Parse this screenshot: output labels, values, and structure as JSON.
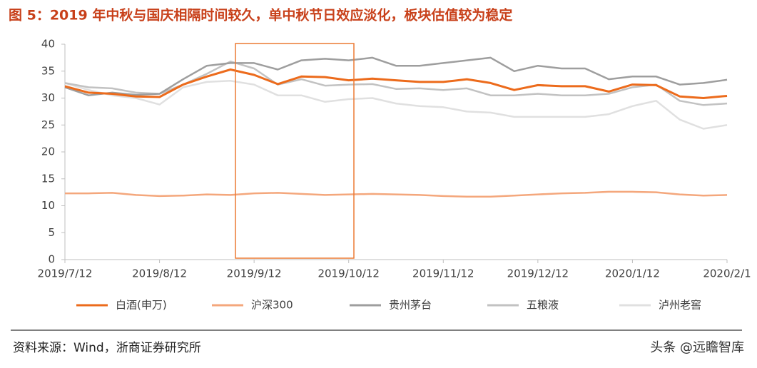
{
  "chart_data": {
    "type": "line",
    "title": "图 5：2019 年中秋与国庆相隔时间较久，单中秋节日效应淡化，板块估值较为稳定",
    "source": "资料来源：Wind，浙商证券研究所",
    "watermark": "头条 @远瞻智库",
    "categories": [
      "2019/7/12",
      null,
      null,
      null,
      "2019/8/12",
      null,
      null,
      null,
      "2019/9/12",
      null,
      null,
      null,
      "2019/10/12",
      null,
      null,
      null,
      "2019/11/12",
      null,
      null,
      null,
      "2019/12/12",
      null,
      null,
      null,
      "2020/1/12",
      null,
      null,
      null,
      "2020/2/1"
    ],
    "ylim": [
      0,
      40
    ],
    "yticks": [
      0,
      5,
      10,
      15,
      20,
      25,
      30,
      35,
      40
    ],
    "series": [
      {
        "name": "白酒(申万)",
        "color": "#ec6b1c",
        "values": [
          32.2,
          31,
          30.8,
          30.3,
          30.2,
          32.5,
          34,
          35.3,
          34.3,
          32.6,
          34,
          33.9,
          33.3,
          33.6,
          33.3,
          33,
          33,
          33.5,
          32.8,
          31.5,
          32.4,
          32.2,
          32.2,
          31.2,
          32.5,
          32.4,
          30.3,
          30,
          30.4
        ]
      },
      {
        "name": "沪深300",
        "color": "#f4a77c",
        "values": [
          12.3,
          12.3,
          12.4,
          12,
          11.8,
          11.9,
          12.1,
          12,
          12.3,
          12.4,
          12.2,
          12,
          12.1,
          12.2,
          12.1,
          12,
          11.8,
          11.7,
          11.7,
          11.9,
          12.1,
          12.3,
          12.4,
          12.6,
          12.6,
          12.5,
          12.1,
          11.9,
          12
        ]
      },
      {
        "name": "贵州茅台",
        "color": "#9e9e9e",
        "values": [
          32,
          30.5,
          31,
          30.6,
          30.8,
          33.5,
          36,
          36.5,
          36.5,
          35.3,
          37,
          37.3,
          37,
          37.5,
          36,
          36,
          36.5,
          37,
          37.5,
          35,
          36,
          35.5,
          35.5,
          33.5,
          34,
          34,
          32.5,
          32.8,
          33.4
        ]
      },
      {
        "name": "五粮液",
        "color": "#c2c2c2",
        "values": [
          32.8,
          32,
          31.8,
          31,
          30.8,
          32.5,
          34.5,
          36.8,
          35.5,
          32.5,
          33.5,
          32.3,
          32.5,
          32.6,
          31.7,
          31.8,
          31.5,
          31.8,
          30.5,
          30.5,
          30.8,
          30.5,
          30.5,
          30.8,
          32,
          32.5,
          29.5,
          28.7,
          29
        ]
      },
      {
        "name": "泸州老窖",
        "color": "#e0e0e0",
        "values": [
          32.8,
          31.5,
          30.5,
          30,
          28.8,
          32,
          33,
          33.2,
          32.5,
          30.5,
          30.5,
          29.3,
          29.8,
          30,
          29,
          28.5,
          28.3,
          27.5,
          27.3,
          26.5,
          26.5,
          26.5,
          26.5,
          27,
          28.5,
          29.5,
          26,
          24.3,
          25
        ]
      }
    ]
  }
}
